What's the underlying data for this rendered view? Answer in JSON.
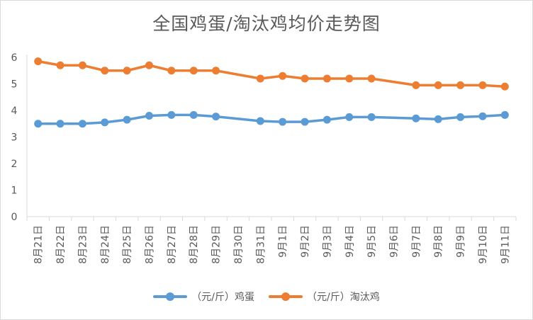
{
  "chart_data": {
    "type": "line",
    "title": "全国鸡蛋/淘汰鸡均价走势图",
    "categories": [
      "8月21日",
      "8月22日",
      "8月23日",
      "8月24日",
      "8月25日",
      "8月26日",
      "8月27日",
      "8月28日",
      "8月29日",
      "8月30日",
      "8月31日",
      "9月1日",
      "9月2日",
      "9月3日",
      "9月4日",
      "9月5日",
      "9月6日",
      "9月7日",
      "9月8日",
      "9月9日",
      "9月10日",
      "9月11日"
    ],
    "series": [
      {
        "name": "（元/斤）鸡蛋",
        "color": "#5b9bd5",
        "values": [
          3.5,
          3.5,
          3.5,
          3.55,
          3.65,
          3.8,
          3.83,
          3.83,
          3.77,
          null,
          3.6,
          3.57,
          3.57,
          3.65,
          3.75,
          3.75,
          null,
          3.7,
          3.67,
          3.75,
          3.78,
          3.83
        ]
      },
      {
        "name": "（元/斤）淘汰鸡",
        "color": "#ed7d31",
        "values": [
          5.85,
          5.7,
          5.7,
          5.5,
          5.5,
          5.7,
          5.5,
          5.5,
          5.5,
          null,
          5.2,
          5.3,
          5.2,
          5.2,
          5.2,
          5.2,
          null,
          4.95,
          4.95,
          4.95,
          4.95,
          4.9
        ]
      }
    ],
    "ylim": [
      0,
      6
    ],
    "yticks": [
      0,
      1,
      2,
      3,
      4,
      5,
      6
    ],
    "grid": false,
    "legend_position": "bottom"
  }
}
